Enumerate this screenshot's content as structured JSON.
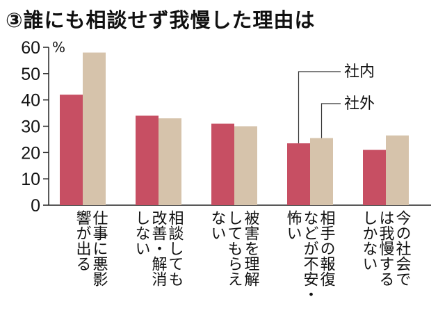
{
  "title": "③誰にも相談せず我慢した理由は",
  "chart_data": {
    "type": "bar",
    "title": "③誰にも相談せず我慢した理由は",
    "unit": "%",
    "ylim": [
      0,
      60
    ],
    "yticks": [
      0,
      10,
      20,
      30,
      40,
      50,
      60
    ],
    "grid": false,
    "legend": "annotations near 4th category",
    "categories": [
      [
        "仕事に悪影",
        "響が出る"
      ],
      [
        "相談しても",
        "改善・解消",
        "しない"
      ],
      [
        "被害を理解",
        "してもらえ",
        "ない"
      ],
      [
        "相手の報復",
        "などが不安・",
        "怖い"
      ],
      [
        "今の社会で",
        "は我慢する",
        "しかない"
      ]
    ],
    "series": [
      {
        "name": "社内",
        "color": "#c74f63",
        "values": [
          42,
          34,
          31,
          23.5,
          21
        ]
      },
      {
        "name": "社外",
        "color": "#d6c3ab",
        "values": [
          58,
          33,
          30,
          25.5,
          26.5
        ]
      }
    ]
  }
}
